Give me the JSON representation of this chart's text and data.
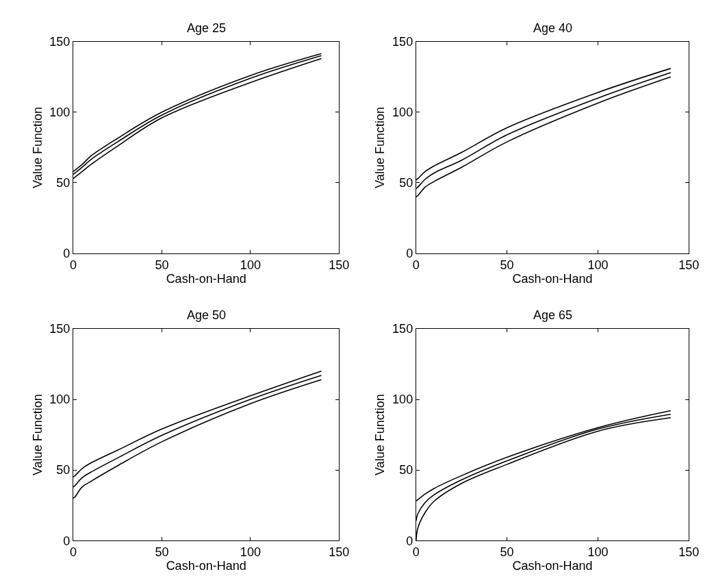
{
  "chart_data": [
    {
      "type": "line",
      "title": "Age 25",
      "xlabel": "Cash-on-Hand",
      "ylabel": "Value Function",
      "x": [
        0,
        1,
        5,
        10,
        25,
        50,
        100,
        140
      ],
      "xlim": [
        0,
        150
      ],
      "ylim": [
        0,
        150
      ],
      "xticks": [
        0,
        50,
        100,
        150
      ],
      "yticks": [
        0,
        50,
        100,
        150
      ],
      "series": [
        {
          "color": "#000000",
          "values": [
            58,
            59,
            63,
            69,
            81.5,
            100,
            126,
            141.5
          ]
        },
        {
          "color": "#000000",
          "values": [
            56,
            57,
            61,
            66.5,
            79,
            98,
            124,
            140
          ]
        },
        {
          "color": "#000000",
          "values": [
            53,
            54,
            58,
            63,
            76,
            96,
            121,
            138
          ]
        }
      ]
    },
    {
      "type": "line",
      "title": "Age 40",
      "xlabel": "Cash-on-Hand",
      "ylabel": "Value Function",
      "x": [
        0,
        1,
        5,
        10,
        25,
        50,
        100,
        140
      ],
      "xlim": [
        0,
        150
      ],
      "ylim": [
        0,
        150
      ],
      "xticks": [
        0,
        50,
        100,
        150
      ],
      "yticks": [
        0,
        50,
        100,
        150
      ],
      "series": [
        {
          "color": "#000000",
          "values": [
            52,
            53,
            58,
            62,
            71.5,
            89,
            114,
            131
          ]
        },
        {
          "color": "#000000",
          "values": [
            46,
            47,
            52.5,
            57,
            66,
            84,
            110,
            128
          ]
        },
        {
          "color": "#000000",
          "values": [
            40,
            41,
            47,
            51,
            61,
            79,
            106.5,
            125
          ]
        }
      ]
    },
    {
      "type": "line",
      "title": "Age 50",
      "xlabel": "Cash-on-Hand",
      "ylabel": "Value Function",
      "x": [
        0,
        1,
        5,
        10,
        25,
        50,
        100,
        140
      ],
      "xlim": [
        0,
        150
      ],
      "ylim": [
        0,
        150
      ],
      "xticks": [
        0,
        50,
        100,
        150
      ],
      "yticks": [
        0,
        50,
        100,
        150
      ],
      "series": [
        {
          "color": "#000000",
          "values": [
            45,
            46,
            51,
            55,
            64,
            79,
            102.5,
            120
          ]
        },
        {
          "color": "#000000",
          "values": [
            38,
            39,
            44.5,
            48.5,
            58.5,
            74.5,
            100,
            117
          ]
        },
        {
          "color": "#000000",
          "values": [
            30,
            31,
            38,
            42,
            53,
            70,
            97,
            114
          ]
        }
      ]
    },
    {
      "type": "line",
      "title": "Age 65",
      "xlabel": "Cash-on-Hand",
      "ylabel": "Value Function",
      "x": [
        0,
        1,
        5,
        10,
        25,
        50,
        100,
        140
      ],
      "xlim": [
        0,
        150
      ],
      "ylim": [
        0,
        150
      ],
      "xticks": [
        0,
        50,
        100,
        150
      ],
      "yticks": [
        0,
        50,
        100,
        150
      ],
      "series": [
        {
          "color": "#000000",
          "values": [
            28,
            29,
            33,
            37,
            46,
            59,
            80,
            92
          ]
        },
        {
          "color": "#000000",
          "values": [
            14,
            19,
            27,
            32.5,
            43,
            56.5,
            79,
            89.5
          ]
        },
        {
          "color": "#000000",
          "values": [
            0,
            9,
            20,
            28,
            40.5,
            54,
            77.5,
            87
          ]
        }
      ]
    }
  ]
}
